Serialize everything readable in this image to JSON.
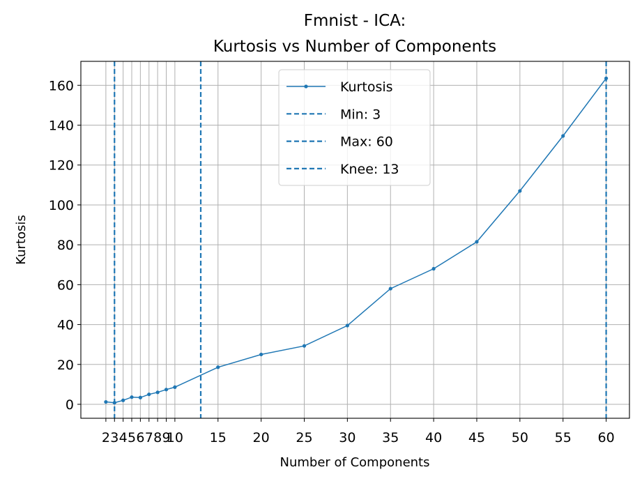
{
  "chart_data": {
    "type": "line",
    "title_line1": "Fmnist - ICA:",
    "title_line2": "Kurtosis vs Number of Components",
    "xlabel": "Number of Components",
    "ylabel": "Kurtosis",
    "xlim": [
      -0.9,
      62.7
    ],
    "ylim": [
      -7,
      172
    ],
    "x_ticks": [
      2,
      3,
      4,
      5,
      6,
      7,
      8,
      9,
      10,
      15,
      20,
      25,
      30,
      35,
      40,
      45,
      50,
      55,
      60
    ],
    "y_ticks": [
      0,
      20,
      40,
      60,
      80,
      100,
      120,
      140,
      160
    ],
    "grid": true,
    "legend_position": "top-center",
    "series": [
      {
        "name": "Kurtosis",
        "color": "#1f77b4",
        "x": [
          2,
          3,
          4,
          5,
          6,
          7,
          8,
          9,
          10,
          15,
          20,
          25,
          30,
          35,
          40,
          45,
          50,
          55,
          60
        ],
        "y": [
          1.2,
          0.8,
          2.0,
          3.6,
          3.4,
          5.0,
          6.0,
          7.4,
          8.6,
          18.6,
          25.0,
          29.3,
          39.5,
          58.0,
          68.0,
          81.5,
          107.0,
          134.6,
          163.5
        ]
      }
    ],
    "vlines": [
      {
        "name": "Min: 3",
        "x": 3,
        "color": "#1f77b4"
      },
      {
        "name": "Max: 60",
        "x": 60,
        "color": "#1f77b4"
      },
      {
        "name": "Knee: 13",
        "x": 13,
        "color": "#1f77b4"
      }
    ]
  }
}
